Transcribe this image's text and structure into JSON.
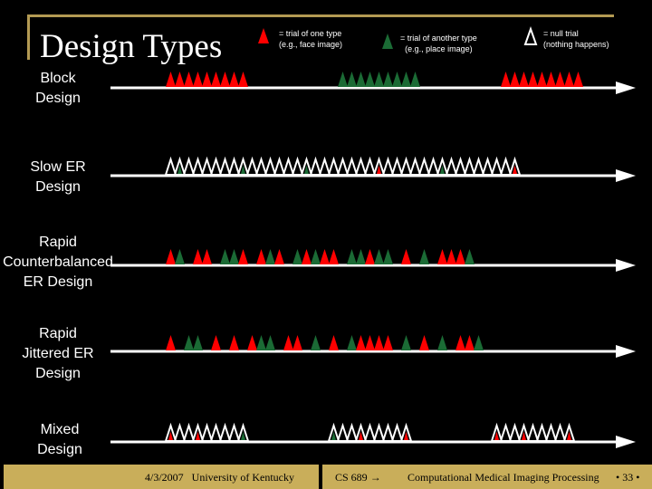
{
  "slide": {
    "title": "Design Types"
  },
  "legend": [
    {
      "symbol": "red",
      "lines": [
        "= trial of one type",
        "(e.g., face image)"
      ]
    },
    {
      "symbol": "green",
      "lines": [
        "= trial of another type",
        "(e.g., place image)"
      ]
    },
    {
      "symbol": "null",
      "lines": [
        "= null trial",
        "(nothing happens)"
      ]
    }
  ],
  "rows": [
    {
      "key": "block",
      "label_lines": [
        "Block",
        "Design"
      ],
      "trials": "RRRRRRRRR..........GGGGGGGGG.........RRRRRRRRR"
    },
    {
      "key": "slow-er",
      "label_lines": [
        "Slow ER",
        "Design"
      ],
      "trials": "ngnnnnnngnnnnnngnnnnnnnrnnnnnngnnnnnnnr"
    },
    {
      "key": "rapid-counterbalanced",
      "label_lines": [
        "Rapid",
        "Counterbalanced",
        "ER Design"
      ],
      "trials": "RG RR GGR RGR GRGRR GGRGG R G RRRG"
    },
    {
      "key": "rapid-jittered",
      "label_lines": [
        "Rapid",
        "Jittered ER",
        "Design"
      ],
      "trials": "R GG R R RGG RR G R GRRRR G R G RRG"
    },
    {
      "key": "mixed",
      "label_lines": [
        "Mixed",
        "Design"
      ],
      "trials": "rnnrnnnng.........gnnrnnnnr.........rnnrnnnnr"
    }
  ],
  "colors": {
    "red": "#ff0000",
    "green": "#1b6b35",
    "null_outline": "#ffffff",
    "axis": "#ffffff",
    "footer": "#c9ae5a",
    "frame": "#b39a53"
  },
  "footer": {
    "date": "4/3/2007",
    "org": "University of Kentucky",
    "course": "CS 689",
    "course_arrow": "→",
    "topic": "Computational Medical Imaging Processing",
    "page": "• 33 •"
  }
}
